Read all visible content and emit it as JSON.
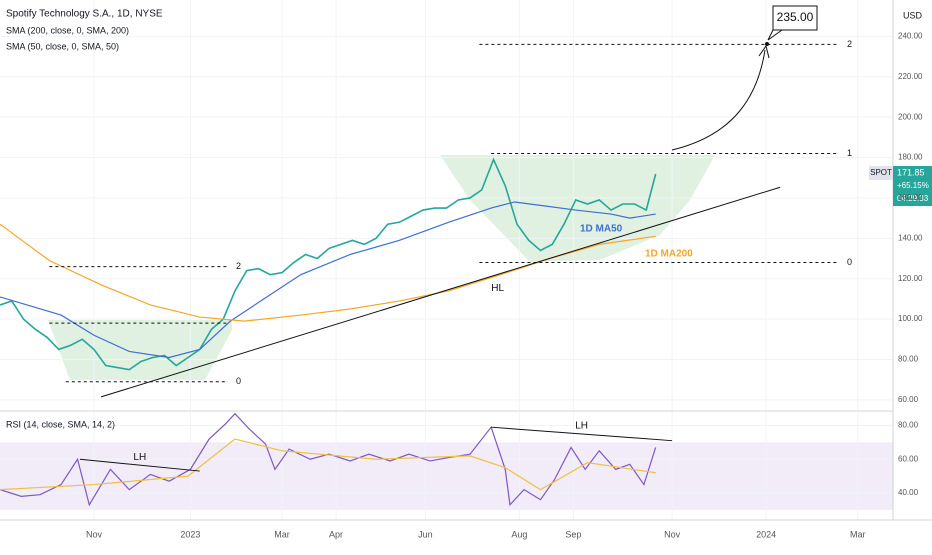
{
  "chart_data": [
    {
      "type": "line",
      "title": "Spotify Technology S.A., 1D, NYSE",
      "currency": "USD",
      "xlim": [
        0,
        380
      ],
      "ylim": [
        55,
        258
      ],
      "yticks": [
        {
          "value": 60,
          "label": "60.00"
        },
        {
          "value": 80,
          "label": "80.00"
        },
        {
          "value": 100,
          "label": "100.00"
        },
        {
          "value": 120,
          "label": "120.00"
        },
        {
          "value": 140,
          "label": "140.00"
        },
        {
          "value": 160,
          "label": "160.00"
        },
        {
          "value": 180,
          "label": "180.00"
        },
        {
          "value": 200,
          "label": "200.00"
        },
        {
          "value": 220,
          "label": "220.00"
        },
        {
          "value": 240,
          "label": "240.00"
        }
      ],
      "grid": true,
      "series": [
        {
          "name": "SPOT",
          "color": "#26a69a",
          "x": [
            0,
            5,
            10,
            15,
            20,
            25,
            30,
            35,
            40,
            45,
            50,
            55,
            60,
            65,
            70,
            75,
            80,
            85,
            90,
            95,
            100,
            105,
            110,
            115,
            120,
            125,
            130,
            135,
            140,
            145,
            150,
            155,
            160,
            165,
            170,
            175,
            180,
            185,
            190,
            195,
            200,
            205,
            210,
            215,
            220,
            225,
            230,
            235,
            240,
            245,
            250,
            255,
            260,
            265,
            270,
            275,
            279
          ],
          "values": [
            107,
            109,
            100,
            95,
            91,
            85,
            87,
            90,
            85,
            77,
            76,
            75,
            79,
            81,
            82,
            77,
            81,
            85,
            95,
            100,
            114,
            124,
            125,
            122,
            123,
            128,
            132,
            130,
            135,
            137,
            139,
            137,
            140,
            147,
            148,
            151,
            154,
            155,
            155,
            159,
            160,
            164,
            179,
            166,
            147,
            139,
            134,
            137,
            147,
            159,
            157,
            159,
            154,
            157,
            157,
            154,
            171.85
          ]
        },
        {
          "name": "SMA (50, close, 0, SMA, 50)",
          "label": "1D MA50",
          "color": "#3b6fd4",
          "x": [
            0,
            26,
            40,
            55,
            72,
            85,
            98,
            111,
            128,
            149,
            170,
            191,
            209,
            219,
            232,
            245,
            260,
            268,
            279
          ],
          "values": [
            111,
            102,
            92,
            84,
            81,
            85,
            99,
            109,
            122,
            132,
            139,
            148,
            155,
            158,
            156,
            154,
            152,
            150,
            152
          ]
        },
        {
          "name": "SMA (200, close, 0, SMA, 200)",
          "label": "1D MA200",
          "color": "#f5a623",
          "x": [
            0,
            21,
            43,
            64,
            85,
            104,
            128,
            149,
            170,
            191,
            213,
            234,
            255,
            279
          ],
          "values": [
            147,
            129,
            117,
            107,
            101,
            99,
            102,
            105,
            109,
            114,
            122,
            130,
            137,
            141
          ]
        }
      ],
      "levels": [
        {
          "label": "2",
          "value": 126,
          "from": 21,
          "to": 97
        },
        {
          "value": 98,
          "from": 21,
          "to": 97
        },
        {
          "label": "0",
          "value": 69,
          "from": 28,
          "to": 97
        },
        {
          "label": "2",
          "value": 236,
          "from": 204,
          "to": 357
        },
        {
          "label": "1",
          "value": 182,
          "from": 209,
          "to": 357
        },
        {
          "label": "0",
          "value": 128,
          "from": 204,
          "to": 357
        }
      ],
      "trendlines": [
        {
          "label": "HL",
          "x": [
            43,
            332
          ],
          "y": [
            61.5,
            165.3
          ]
        }
      ],
      "target": {
        "value": 235,
        "label": "235.00"
      },
      "change": {
        "value": 65.15,
        "label": "+65.15%"
      },
      "countdown": "04:29:33"
    },
    {
      "type": "line",
      "title": "RSI (14, close, SMA, 14, 2)",
      "xlim": [
        0,
        380
      ],
      "xticks": [
        {
          "value": 40,
          "label": "Nov"
        },
        {
          "value": 81,
          "label": "2023"
        },
        {
          "value": 120,
          "label": "Mar"
        },
        {
          "value": 143,
          "label": "Apr"
        },
        {
          "value": 181,
          "label": "Jun"
        },
        {
          "value": 221,
          "label": "Aug"
        },
        {
          "value": 244,
          "label": "Sep"
        },
        {
          "value": 286,
          "label": "Nov"
        },
        {
          "value": 326,
          "label": "2024"
        },
        {
          "value": 365,
          "label": "Mar"
        }
      ],
      "ylim": [
        24,
        88
      ],
      "yticks": [
        {
          "value": 40,
          "label": "40.00"
        },
        {
          "value": 60,
          "label": "60.00"
        },
        {
          "value": 80,
          "label": "80.00"
        }
      ],
      "band": [
        30,
        70
      ],
      "series": [
        {
          "color": "#7e57c2",
          "x": [
            0,
            9,
            17,
            26,
            33,
            38,
            47,
            55,
            64,
            72,
            81,
            89,
            96,
            100,
            106,
            113,
            117,
            123,
            132,
            140,
            149,
            157,
            166,
            174,
            183,
            191,
            200,
            209,
            215,
            217,
            223,
            230,
            236,
            243,
            249,
            255,
            262,
            268,
            274,
            279
          ],
          "values": [
            42,
            38,
            39,
            45,
            60,
            33,
            54,
            42,
            51,
            47,
            54,
            72,
            81,
            87,
            78,
            69,
            54,
            66,
            60,
            63,
            59,
            63,
            59,
            63,
            59,
            61,
            63,
            79,
            54,
            33,
            42,
            36,
            48,
            67,
            54,
            65,
            54,
            57,
            45,
            67
          ]
        },
        {
          "color": "#f0c040",
          "x": [
            0,
            40,
            80,
            100,
            120,
            160,
            200,
            215,
            230,
            250,
            279
          ],
          "values": [
            42,
            45,
            50,
            72,
            65,
            60,
            62,
            55,
            42,
            58,
            52
          ]
        }
      ],
      "trendlines": [
        {
          "label": "LH",
          "x": [
            34,
            85
          ],
          "y": [
            60,
            53
          ]
        },
        {
          "label": "LH",
          "x": [
            209,
            286
          ],
          "y": [
            79,
            71
          ]
        }
      ]
    }
  ]
}
